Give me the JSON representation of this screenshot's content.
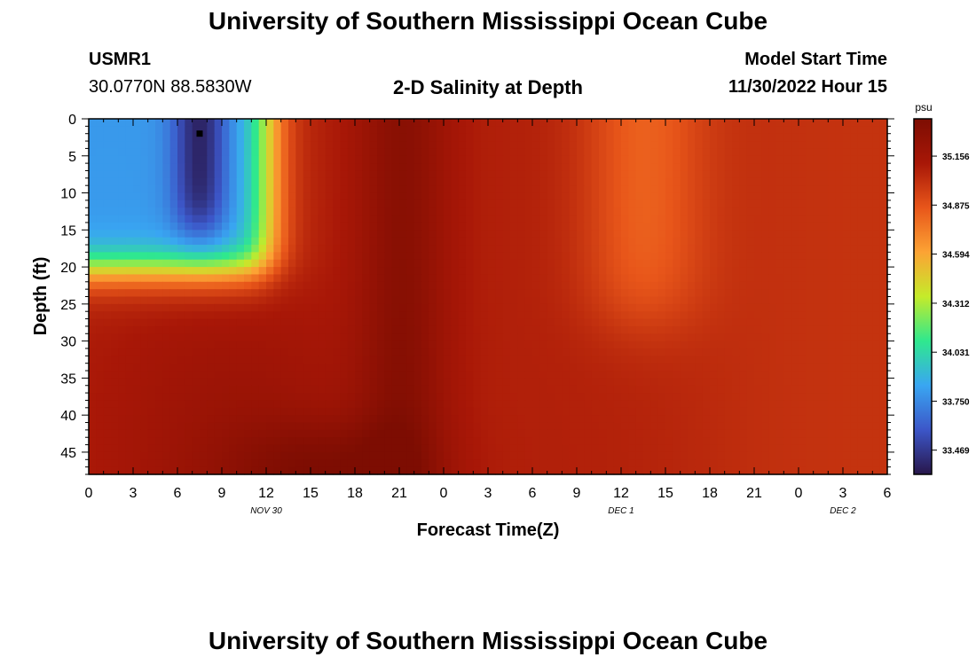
{
  "header": {
    "title": "University of Southern Mississippi Ocean Cube",
    "station_id": "USMR1",
    "location": "30.0770N  88.5830W",
    "subtitle": "2-D Salinity at Depth",
    "model_start_label": "Model Start Time",
    "model_start_value": "11/30/2022 Hour 15"
  },
  "footer": {
    "title": "University of Southern Mississippi Ocean Cube"
  },
  "colors": {
    "colormap": [
      "#28164a",
      "#3c56c8",
      "#39a6f2",
      "#2fe88e",
      "#c5eb2a",
      "#fca334",
      "#e8561a",
      "#a81707",
      "#7d0d02"
    ]
  },
  "chart_data": {
    "type": "heatmap",
    "xlabel": "Forecast Time(Z)",
    "ylabel": "Depth (ft)",
    "x_tick_labels": [
      "0",
      "3",
      "6",
      "9",
      "12",
      "15",
      "18",
      "21",
      "0",
      "3",
      "6",
      "9",
      "12",
      "15",
      "18",
      "21",
      "0",
      "3",
      "6"
    ],
    "y_tick_labels": [
      "0",
      "5",
      "10",
      "15",
      "20",
      "25",
      "30",
      "35",
      "40",
      "45"
    ],
    "y_ticks": [
      0,
      5,
      10,
      15,
      20,
      25,
      30,
      35,
      40,
      45
    ],
    "ylim": [
      0,
      48
    ],
    "xlim_hours": [
      0,
      54
    ],
    "date_labels": [
      {
        "text": "NOV 30",
        "hour": 12
      },
      {
        "text": "DEC 1",
        "hour": 36
      },
      {
        "text": "DEC 2",
        "hour": 51
      }
    ],
    "colorbar": {
      "unit": "psu",
      "ticks": [
        "35.156",
        "34.875",
        "34.594",
        "34.312",
        "34.031",
        "33.750",
        "33.469"
      ],
      "tick_values": [
        35.156,
        34.875,
        34.594,
        34.312,
        34.031,
        33.75,
        33.469
      ],
      "range": [
        33.33,
        35.37
      ]
    },
    "marker": {
      "hour": 7.5,
      "depth": 2
    },
    "grid": false,
    "regions": [
      {
        "hours": "0-13",
        "depths": "0-20",
        "salinity": "33.7-33.9"
      },
      {
        "hours": "6-9",
        "depths": "0-15",
        "salinity": "33.35"
      },
      {
        "hours": "19-23",
        "depths": "0-48",
        "salinity": "35.3"
      },
      {
        "hours": "35-39",
        "depths": "0-25",
        "salinity": "34.7"
      },
      {
        "hours": "15-18",
        "depths": "46-48",
        "salinity": "35.35"
      },
      {
        "hours": "24-54",
        "depths": "0-48",
        "salinity": "35.0-35.1"
      }
    ]
  }
}
